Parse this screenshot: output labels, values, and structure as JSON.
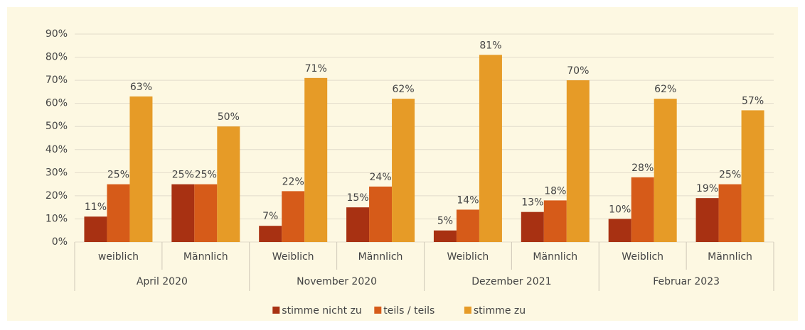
{
  "chart_data": {
    "type": "bar",
    "categories": [
      "weiblich",
      "Männlich",
      "Weiblich",
      "Männlich",
      "Weiblich",
      "Männlich",
      "Weiblich",
      "Männlich"
    ],
    "groups": [
      "April 2020",
      "November 2020",
      "Dezember 2021",
      "Februar 2023"
    ],
    "series": [
      {
        "name": "stimme nicht zu",
        "color": "#a83112",
        "values": [
          11,
          25,
          7,
          15,
          5,
          13,
          10,
          19
        ],
        "value_labels": [
          "11%",
          "25%",
          "7%",
          "15%",
          "5%",
          "13%",
          "10%",
          "19%"
        ]
      },
      {
        "name": "teils / teils",
        "color": "#d65b19",
        "values": [
          25,
          25,
          22,
          24,
          14,
          18,
          28,
          25
        ],
        "value_labels": [
          "25%",
          "25%",
          "22%",
          "24%",
          "14%",
          "18%",
          "28%",
          "25%"
        ]
      },
      {
        "name": "stimme zu",
        "color": "#e69b27",
        "values": [
          63,
          50,
          71,
          62,
          81,
          70,
          62,
          57
        ],
        "value_labels": [
          "63%",
          "50%",
          "71%",
          "62%",
          "81%",
          "70%",
          "62%",
          "57%"
        ]
      }
    ],
    "ylim": [
      0,
      90
    ],
    "yticks": [
      {
        "value": 0,
        "label": "0%"
      },
      {
        "value": 10,
        "label": "10%"
      },
      {
        "value": 20,
        "label": "20%"
      },
      {
        "value": 30,
        "label": "30%"
      },
      {
        "value": 40,
        "label": "40%"
      },
      {
        "value": 50,
        "label": "50%"
      },
      {
        "value": 60,
        "label": "60%"
      },
      {
        "value": 70,
        "label": "70%"
      },
      {
        "value": 80,
        "label": "80%"
      },
      {
        "value": 90,
        "label": "90%"
      }
    ],
    "grid": true,
    "legend": "bottom"
  }
}
